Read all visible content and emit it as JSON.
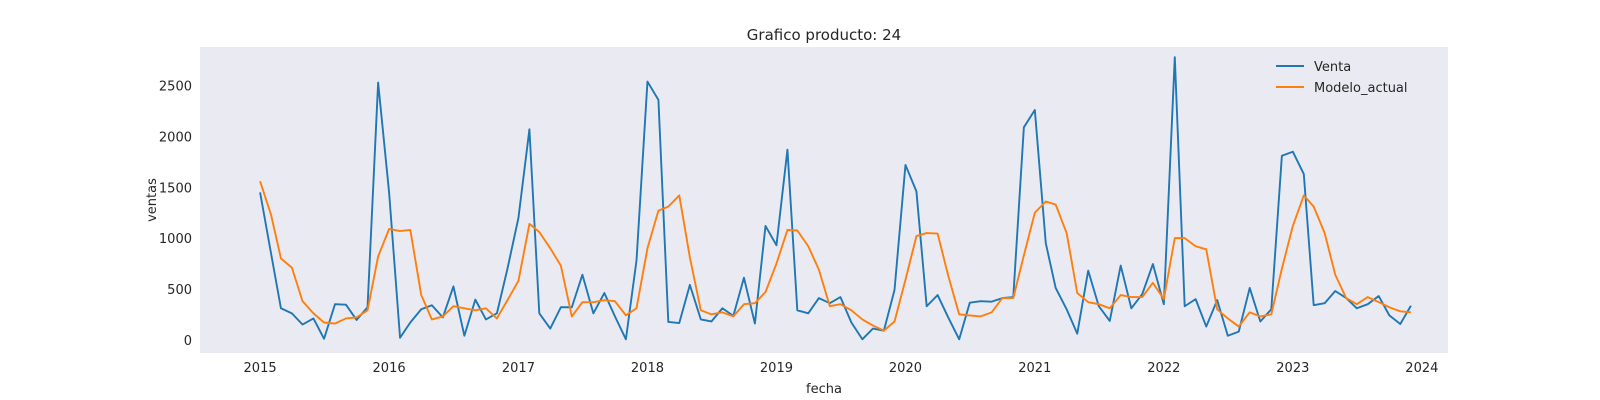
{
  "chart_data": {
    "type": "line",
    "title": "Grafico producto: 24",
    "xlabel": "fecha",
    "ylabel": "ventas",
    "xlim": [
      "2014-07-15",
      "2024-03-15"
    ],
    "ylim": [
      -130,
      2880
    ],
    "x_ticks": [
      "2015",
      "2016",
      "2017",
      "2018",
      "2019",
      "2020",
      "2021",
      "2022",
      "2023",
      "2024"
    ],
    "y_ticks": [
      0,
      500,
      1000,
      1500,
      2000,
      2500
    ],
    "grid": false,
    "legend_position": "top-right",
    "background": "#eaeaf2",
    "x": [
      "2015-01",
      "2015-02",
      "2015-03",
      "2015-04",
      "2015-05",
      "2015-06",
      "2015-07",
      "2015-08",
      "2015-09",
      "2015-10",
      "2015-11",
      "2015-12",
      "2016-01",
      "2016-02",
      "2016-03",
      "2016-04",
      "2016-05",
      "2016-06",
      "2016-07",
      "2016-08",
      "2016-09",
      "2016-10",
      "2016-11",
      "2016-12",
      "2017-01",
      "2017-02",
      "2017-03",
      "2017-04",
      "2017-05",
      "2017-06",
      "2017-07",
      "2017-08",
      "2017-09",
      "2017-10",
      "2017-11",
      "2017-12",
      "2018-01",
      "2018-02",
      "2018-03",
      "2018-04",
      "2018-05",
      "2018-06",
      "2018-07",
      "2018-08",
      "2018-09",
      "2018-10",
      "2018-11",
      "2018-12",
      "2019-01",
      "2019-02",
      "2019-03",
      "2019-04",
      "2019-05",
      "2019-06",
      "2019-07",
      "2019-08",
      "2019-09",
      "2019-10",
      "2019-11",
      "2019-12",
      "2020-01",
      "2020-02",
      "2020-03",
      "2020-04",
      "2020-05",
      "2020-06",
      "2020-07",
      "2020-08",
      "2020-09",
      "2020-10",
      "2020-11",
      "2020-12",
      "2021-01",
      "2021-02",
      "2021-03",
      "2021-04",
      "2021-05",
      "2021-06",
      "2021-07",
      "2021-08",
      "2021-09",
      "2021-10",
      "2021-11",
      "2021-12",
      "2022-01",
      "2022-02",
      "2022-03",
      "2022-04",
      "2022-05",
      "2022-06",
      "2022-07",
      "2022-08",
      "2022-09",
      "2022-10",
      "2022-11",
      "2022-12",
      "2023-01",
      "2023-02",
      "2023-03",
      "2023-04",
      "2023-05",
      "2023-06",
      "2023-07",
      "2023-08",
      "2023-09",
      "2023-10",
      "2023-11",
      "2023-12"
    ],
    "series": [
      {
        "name": "Venta",
        "color": "#1f77b4",
        "values": [
          1450,
          850,
          310,
          260,
          150,
          210,
          10,
          350,
          345,
          195,
          320,
          2530,
          1450,
          20,
          170,
          300,
          340,
          220,
          525,
          40,
          395,
          200,
          260,
          700,
          1200,
          2070,
          260,
          110,
          320,
          320,
          640,
          260,
          460,
          230,
          5,
          780,
          2540,
          2360,
          175,
          165,
          540,
          200,
          180,
          310,
          235,
          610,
          160,
          1120,
          930,
          1870,
          290,
          260,
          410,
          360,
          420,
          170,
          5,
          110,
          90,
          490,
          1720,
          1460,
          330,
          440,
          220,
          5,
          365,
          380,
          375,
          410,
          420,
          2090,
          2260,
          950,
          510,
          300,
          60,
          680,
          330,
          185,
          730,
          310,
          450,
          745,
          350,
          2780,
          330,
          400,
          130,
          390,
          40,
          80,
          510,
          180,
          300,
          1810,
          1850,
          1630,
          340,
          360,
          480,
          410,
          310,
          350,
          430,
          240,
          155,
          335
        ]
      },
      {
        "name": "Modelo_actual",
        "color": "#ff7f0e",
        "values": [
          1560,
          1230,
          800,
          710,
          380,
          260,
          170,
          160,
          210,
          220,
          290,
          820,
          1090,
          1070,
          1080,
          440,
          200,
          230,
          330,
          310,
          290,
          310,
          210,
          390,
          580,
          1140,
          1060,
          900,
          730,
          230,
          370,
          370,
          390,
          380,
          240,
          310,
          900,
          1270,
          1310,
          1420,
          810,
          290,
          250,
          270,
          230,
          350,
          360,
          470,
          750,
          1080,
          1075,
          920,
          690,
          330,
          350,
          290,
          200,
          140,
          90,
          180,
          590,
          1020,
          1050,
          1045,
          630,
          250,
          240,
          230,
          270,
          410,
          410,
          830,
          1250,
          1360,
          1330,
          1050,
          460,
          370,
          350,
          310,
          440,
          420,
          420,
          560,
          400,
          1000,
          1000,
          920,
          890,
          300,
          210,
          130,
          270,
          230,
          250,
          700,
          1120,
          1420,
          1310,
          1050,
          640,
          410,
          350,
          420,
          370,
          320,
          280,
          270
        ]
      }
    ]
  }
}
